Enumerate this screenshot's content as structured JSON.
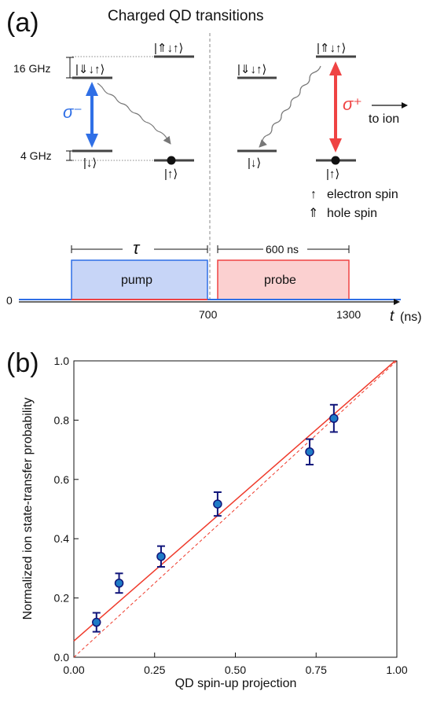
{
  "panel_a": {
    "label": "(a)",
    "title": "Charged QD transitions",
    "freq_high": "16 GHz",
    "freq_low": "4 GHz",
    "left_upper_state": "|⇓↓↑⟩",
    "left_upper_right_state": "|⇑↓↑⟩",
    "left_lower_state": "|↓⟩",
    "left_lower_right_state": "|↑⟩",
    "right_upper_left_state": "|⇓↓↑⟩",
    "right_upper_state": "|⇑↓↑⟩",
    "right_lower_left_state": "|↓⟩",
    "right_lower_state": "|↑⟩",
    "sigma_minus": "σ⁻",
    "sigma_plus": "σ⁺",
    "to_ion": "to ion",
    "legend": [
      {
        "glyph": "↑",
        "text": "electron spin"
      },
      {
        "glyph": "⇑",
        "text": "hole spin"
      }
    ],
    "timeline": {
      "tau": "τ",
      "duration": "600 ns",
      "pump": "pump",
      "probe": "probe",
      "zero": "0",
      "t700": "700",
      "t1300": "1300",
      "t_symbol": "t",
      "t_unit": "(ns)"
    },
    "colors": {
      "blue": "#2f6fe6",
      "red": "#ef4343",
      "pump_fill": "#c7d5f7",
      "probe_fill": "#fbd0d0"
    }
  },
  "panel_b": {
    "label": "(b)"
  },
  "chart_data": {
    "type": "scatter",
    "xlabel": "QD spin-up projection",
    "ylabel": "Normalized ion state-transfer probability",
    "xlim": [
      0.0,
      1.0
    ],
    "ylim": [
      0.0,
      1.0
    ],
    "x_ticks": [
      "0.00",
      "0.25",
      "0.50",
      "0.75",
      "1.00"
    ],
    "y_ticks": [
      "0.0",
      "0.2",
      "0.4",
      "0.6",
      "0.8",
      "1.0"
    ],
    "grid": false,
    "points": [
      {
        "x": 0.07,
        "y": 0.118,
        "err": 0.032
      },
      {
        "x": 0.14,
        "y": 0.25,
        "err": 0.033
      },
      {
        "x": 0.27,
        "y": 0.34,
        "err": 0.035
      },
      {
        "x": 0.445,
        "y": 0.517,
        "err": 0.04
      },
      {
        "x": 0.73,
        "y": 0.693,
        "err": 0.043
      },
      {
        "x": 0.805,
        "y": 0.806,
        "err": 0.046
      }
    ],
    "fit_line": {
      "x": [
        0.0,
        1.0
      ],
      "y": [
        0.055,
        1.005
      ]
    },
    "reference_line": {
      "x": [
        0.0,
        1.0
      ],
      "y": [
        0.0,
        1.0
      ]
    },
    "colors": {
      "marker": "#1f7bc6",
      "marker_edge": "#10157a",
      "errorbar": "#10157a",
      "fit": "#ef3b2c",
      "reference": "#ef3b2c"
    }
  }
}
